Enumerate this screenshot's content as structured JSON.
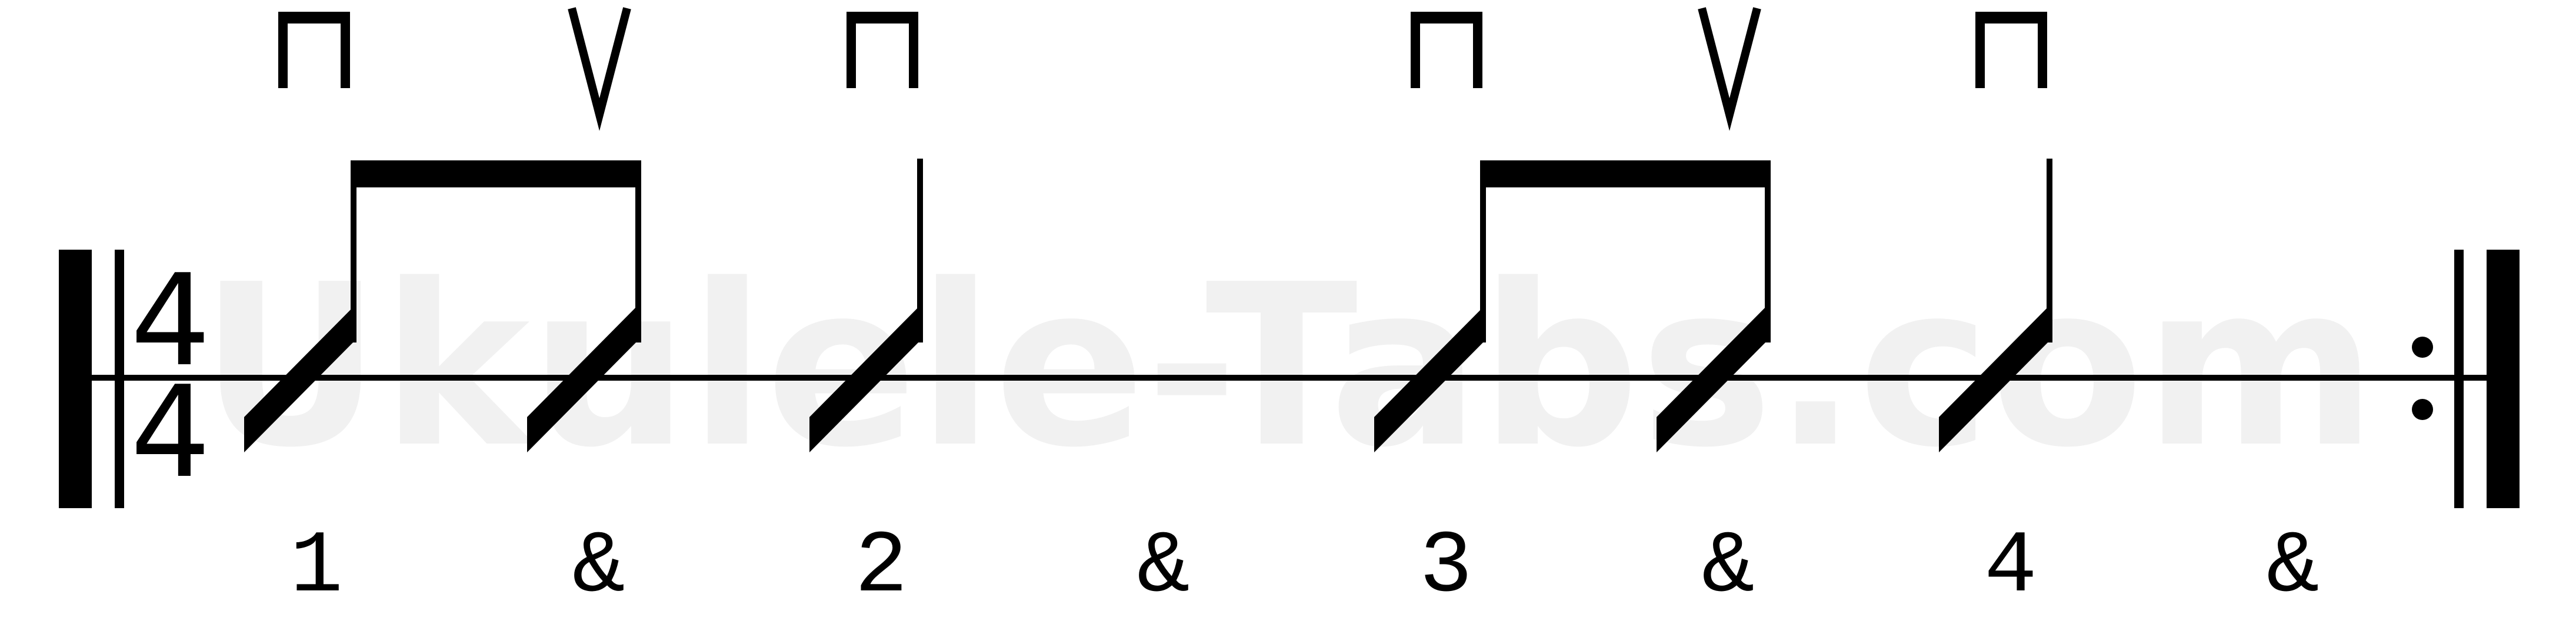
{
  "watermark": "Ukulele-Tabs.com",
  "time_signature": {
    "top": "4",
    "bottom": "4"
  },
  "counts": [
    "1",
    "&",
    "2",
    "&",
    "3",
    "&",
    "4",
    "&"
  ],
  "strum_directions": [
    "down",
    "up",
    "down",
    "down",
    "up",
    "down"
  ],
  "ink_color": "#000000",
  "watermark_color": "#d8d8d8",
  "repeat_end": true
}
